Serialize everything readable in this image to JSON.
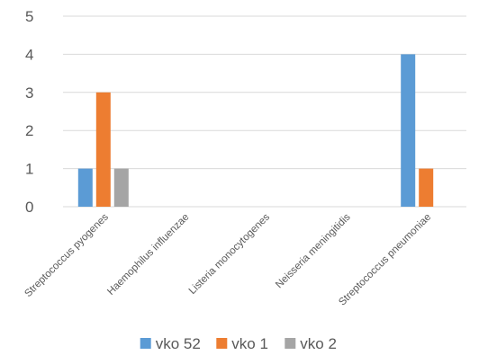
{
  "chart_data": {
    "type": "bar",
    "title": "",
    "xlabel": "",
    "ylabel": "",
    "ylim": [
      0,
      5
    ],
    "yticks": [
      "0",
      "1",
      "2",
      "3",
      "4",
      "5"
    ],
    "grid": true,
    "legend_position": "bottom",
    "categories": [
      "Streptococcus pyogenes",
      "Haemophilus influenzae",
      "Listeria monocytogenes",
      "Neisseria meningitidis",
      "Streptococcus pneumoniae"
    ],
    "series": [
      {
        "name": "vko 52",
        "color": "#5b9bd5",
        "values": [
          1,
          0,
          0,
          0,
          4
        ]
      },
      {
        "name": "vko 1",
        "color": "#ed7d31",
        "values": [
          3,
          0,
          0,
          0,
          1
        ]
      },
      {
        "name": "vko 2",
        "color": "#a5a5a5",
        "values": [
          1,
          0,
          0,
          0,
          0
        ]
      }
    ]
  }
}
